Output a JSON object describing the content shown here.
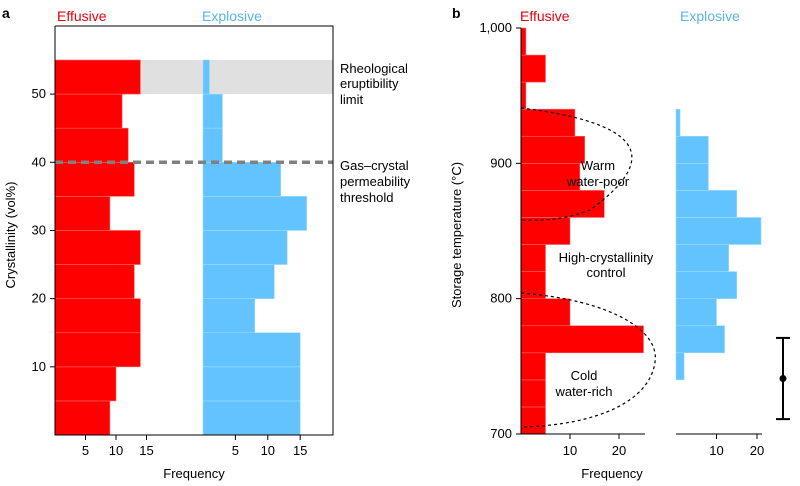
{
  "chart_data": [
    {
      "panel": "a",
      "type": "bar",
      "orientation": "horizontal",
      "xlabel": "Frequency",
      "ylabel": "Crystallinity (vol%)",
      "ylim": [
        0,
        55
      ],
      "yticks": [
        10,
        20,
        30,
        40,
        50
      ],
      "y_tick_labels": [
        "10",
        "20",
        "30",
        "40",
        "50"
      ],
      "bin_width": 5,
      "series": [
        {
          "name": "Effusive",
          "color": "#ff0000",
          "xticks": [
            5,
            10,
            15
          ],
          "x_tick_labels": [
            "5",
            "10",
            "15"
          ],
          "bin_starts": [
            0,
            5,
            10,
            15,
            20,
            25,
            30,
            35,
            40,
            45,
            50
          ],
          "values": [
            9,
            10,
            14,
            14,
            13,
            14,
            9,
            13,
            12,
            11,
            14
          ]
        },
        {
          "name": "Explosive",
          "color": "#63c3ff",
          "xticks": [
            5,
            10,
            15
          ],
          "x_tick_labels": [
            "5",
            "10",
            "15"
          ],
          "bin_starts": [
            0,
            5,
            10,
            15,
            20,
            25,
            30,
            35,
            40,
            45,
            50
          ],
          "values": [
            15,
            15,
            15,
            8,
            11,
            13,
            16,
            12,
            3,
            3,
            1
          ]
        }
      ],
      "shaded_band": {
        "y_range": [
          50,
          55
        ],
        "color": "#e0e0e0"
      },
      "threshold_line": {
        "y": 40,
        "style": "dashed",
        "color": "#808080"
      },
      "annotations": [
        {
          "lines": [
            "Rheological",
            "eruptibility",
            "limit"
          ]
        },
        {
          "lines": [
            "Gas–crystal",
            "permeability",
            "threshold"
          ]
        }
      ]
    },
    {
      "panel": "b",
      "type": "bar",
      "orientation": "horizontal",
      "xlabel": "Frequency",
      "ylabel": "Storage temperature (°C)",
      "ylim": [
        700,
        1000
      ],
      "yticks": [
        700,
        800,
        900,
        1000
      ],
      "y_tick_labels": [
        "700",
        "800",
        "900",
        "1,000"
      ],
      "bin_width": 20,
      "series": [
        {
          "name": "Effusive",
          "color": "#ff0000",
          "xticks": [
            10,
            20
          ],
          "x_tick_labels": [
            "10",
            "20"
          ],
          "bin_starts": [
            700,
            720,
            740,
            760,
            780,
            800,
            820,
            840,
            860,
            880,
            900,
            920,
            940,
            960,
            980
          ],
          "values": [
            5,
            5,
            5,
            25,
            10,
            5,
            5,
            10,
            17,
            12,
            13,
            11,
            1,
            5,
            1
          ]
        },
        {
          "name": "Explosive",
          "color": "#63c3ff",
          "xticks": [
            10,
            20
          ],
          "x_tick_labels": [
            "10",
            "20"
          ],
          "bin_starts": [
            740,
            760,
            780,
            800,
            820,
            840,
            860,
            880,
            900,
            920
          ],
          "values": [
            2,
            12,
            10,
            15,
            13,
            21,
            15,
            8,
            8,
            1
          ]
        }
      ],
      "regions": [
        {
          "lines": [
            "Warm",
            "water-poor"
          ]
        },
        {
          "lines": [
            "High-crystallinity",
            "control"
          ]
        },
        {
          "lines": [
            "Cold",
            "water-rich"
          ]
        }
      ],
      "error_bar": {
        "center": 741,
        "low": 711,
        "high": 771
      }
    }
  ]
}
